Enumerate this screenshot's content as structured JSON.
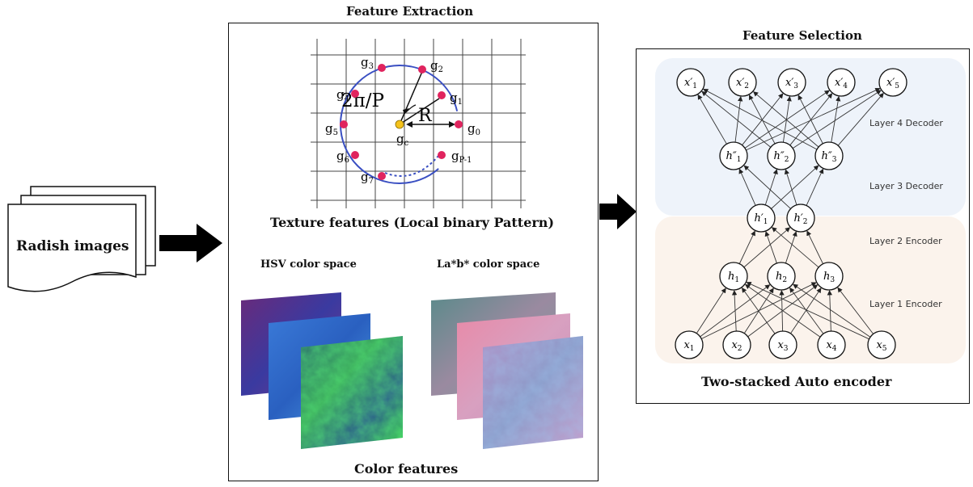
{
  "input": {
    "label": "Radish images"
  },
  "feature_extraction": {
    "title": "Feature Extraction",
    "lbp": {
      "caption": "Texture features (Local binary Pattern)",
      "angle_label": "2π/P",
      "radius_label": "R",
      "center_label": "g",
      "center_sub": "c",
      "points": [
        {
          "base": "g",
          "sub": "0"
        },
        {
          "base": "g",
          "sub": "1"
        },
        {
          "base": "g",
          "sub": "2"
        },
        {
          "base": "g",
          "sub": "3"
        },
        {
          "base": "g",
          "sub": "4"
        },
        {
          "base": "g",
          "sub": "5"
        },
        {
          "base": "g",
          "sub": "6"
        },
        {
          "base": "g",
          "sub": "7"
        },
        {
          "base": "g",
          "sub": "P-1"
        }
      ]
    },
    "hsv_label": "HSV color space",
    "lab_label": "La*b* color space",
    "color_caption": "Color features"
  },
  "feature_selection": {
    "title": "Feature Selection",
    "caption": "Two-stacked Auto encoder",
    "layers": {
      "l4": "Layer 4 Decoder",
      "l3": "Layer 3 Decoder",
      "l2": "Layer 2 Encoder",
      "l1": "Layer 1 Encoder"
    },
    "nodes": {
      "output": [
        {
          "base": "x′",
          "sub": "1"
        },
        {
          "base": "x′",
          "sub": "2"
        },
        {
          "base": "x′",
          "sub": "3"
        },
        {
          "base": "x′",
          "sub": "4"
        },
        {
          "base": "x′",
          "sub": "5"
        }
      ],
      "decoder_hidden": [
        {
          "base": "h″",
          "sub": "1"
        },
        {
          "base": "h″",
          "sub": "2"
        },
        {
          "base": "h″",
          "sub": "3"
        }
      ],
      "bottleneck": [
        {
          "base": "h′",
          "sub": "1"
        },
        {
          "base": "h′",
          "sub": "2"
        }
      ],
      "encoder_hidden": [
        {
          "base": "h",
          "sub": "1"
        },
        {
          "base": "h",
          "sub": "2"
        },
        {
          "base": "h",
          "sub": "3"
        }
      ],
      "input": [
        {
          "base": "x",
          "sub": "1"
        },
        {
          "base": "x",
          "sub": "2"
        },
        {
          "base": "x",
          "sub": "3"
        },
        {
          "base": "x",
          "sub": "4"
        },
        {
          "base": "x",
          "sub": "5"
        }
      ]
    }
  },
  "colors": {
    "lbp_point": "#e0245e",
    "center_point": "#f5c21b",
    "circle": "#3a4fc2",
    "decoder_bg": "#eef3fa",
    "encoder_bg": "#fbf3ec"
  }
}
